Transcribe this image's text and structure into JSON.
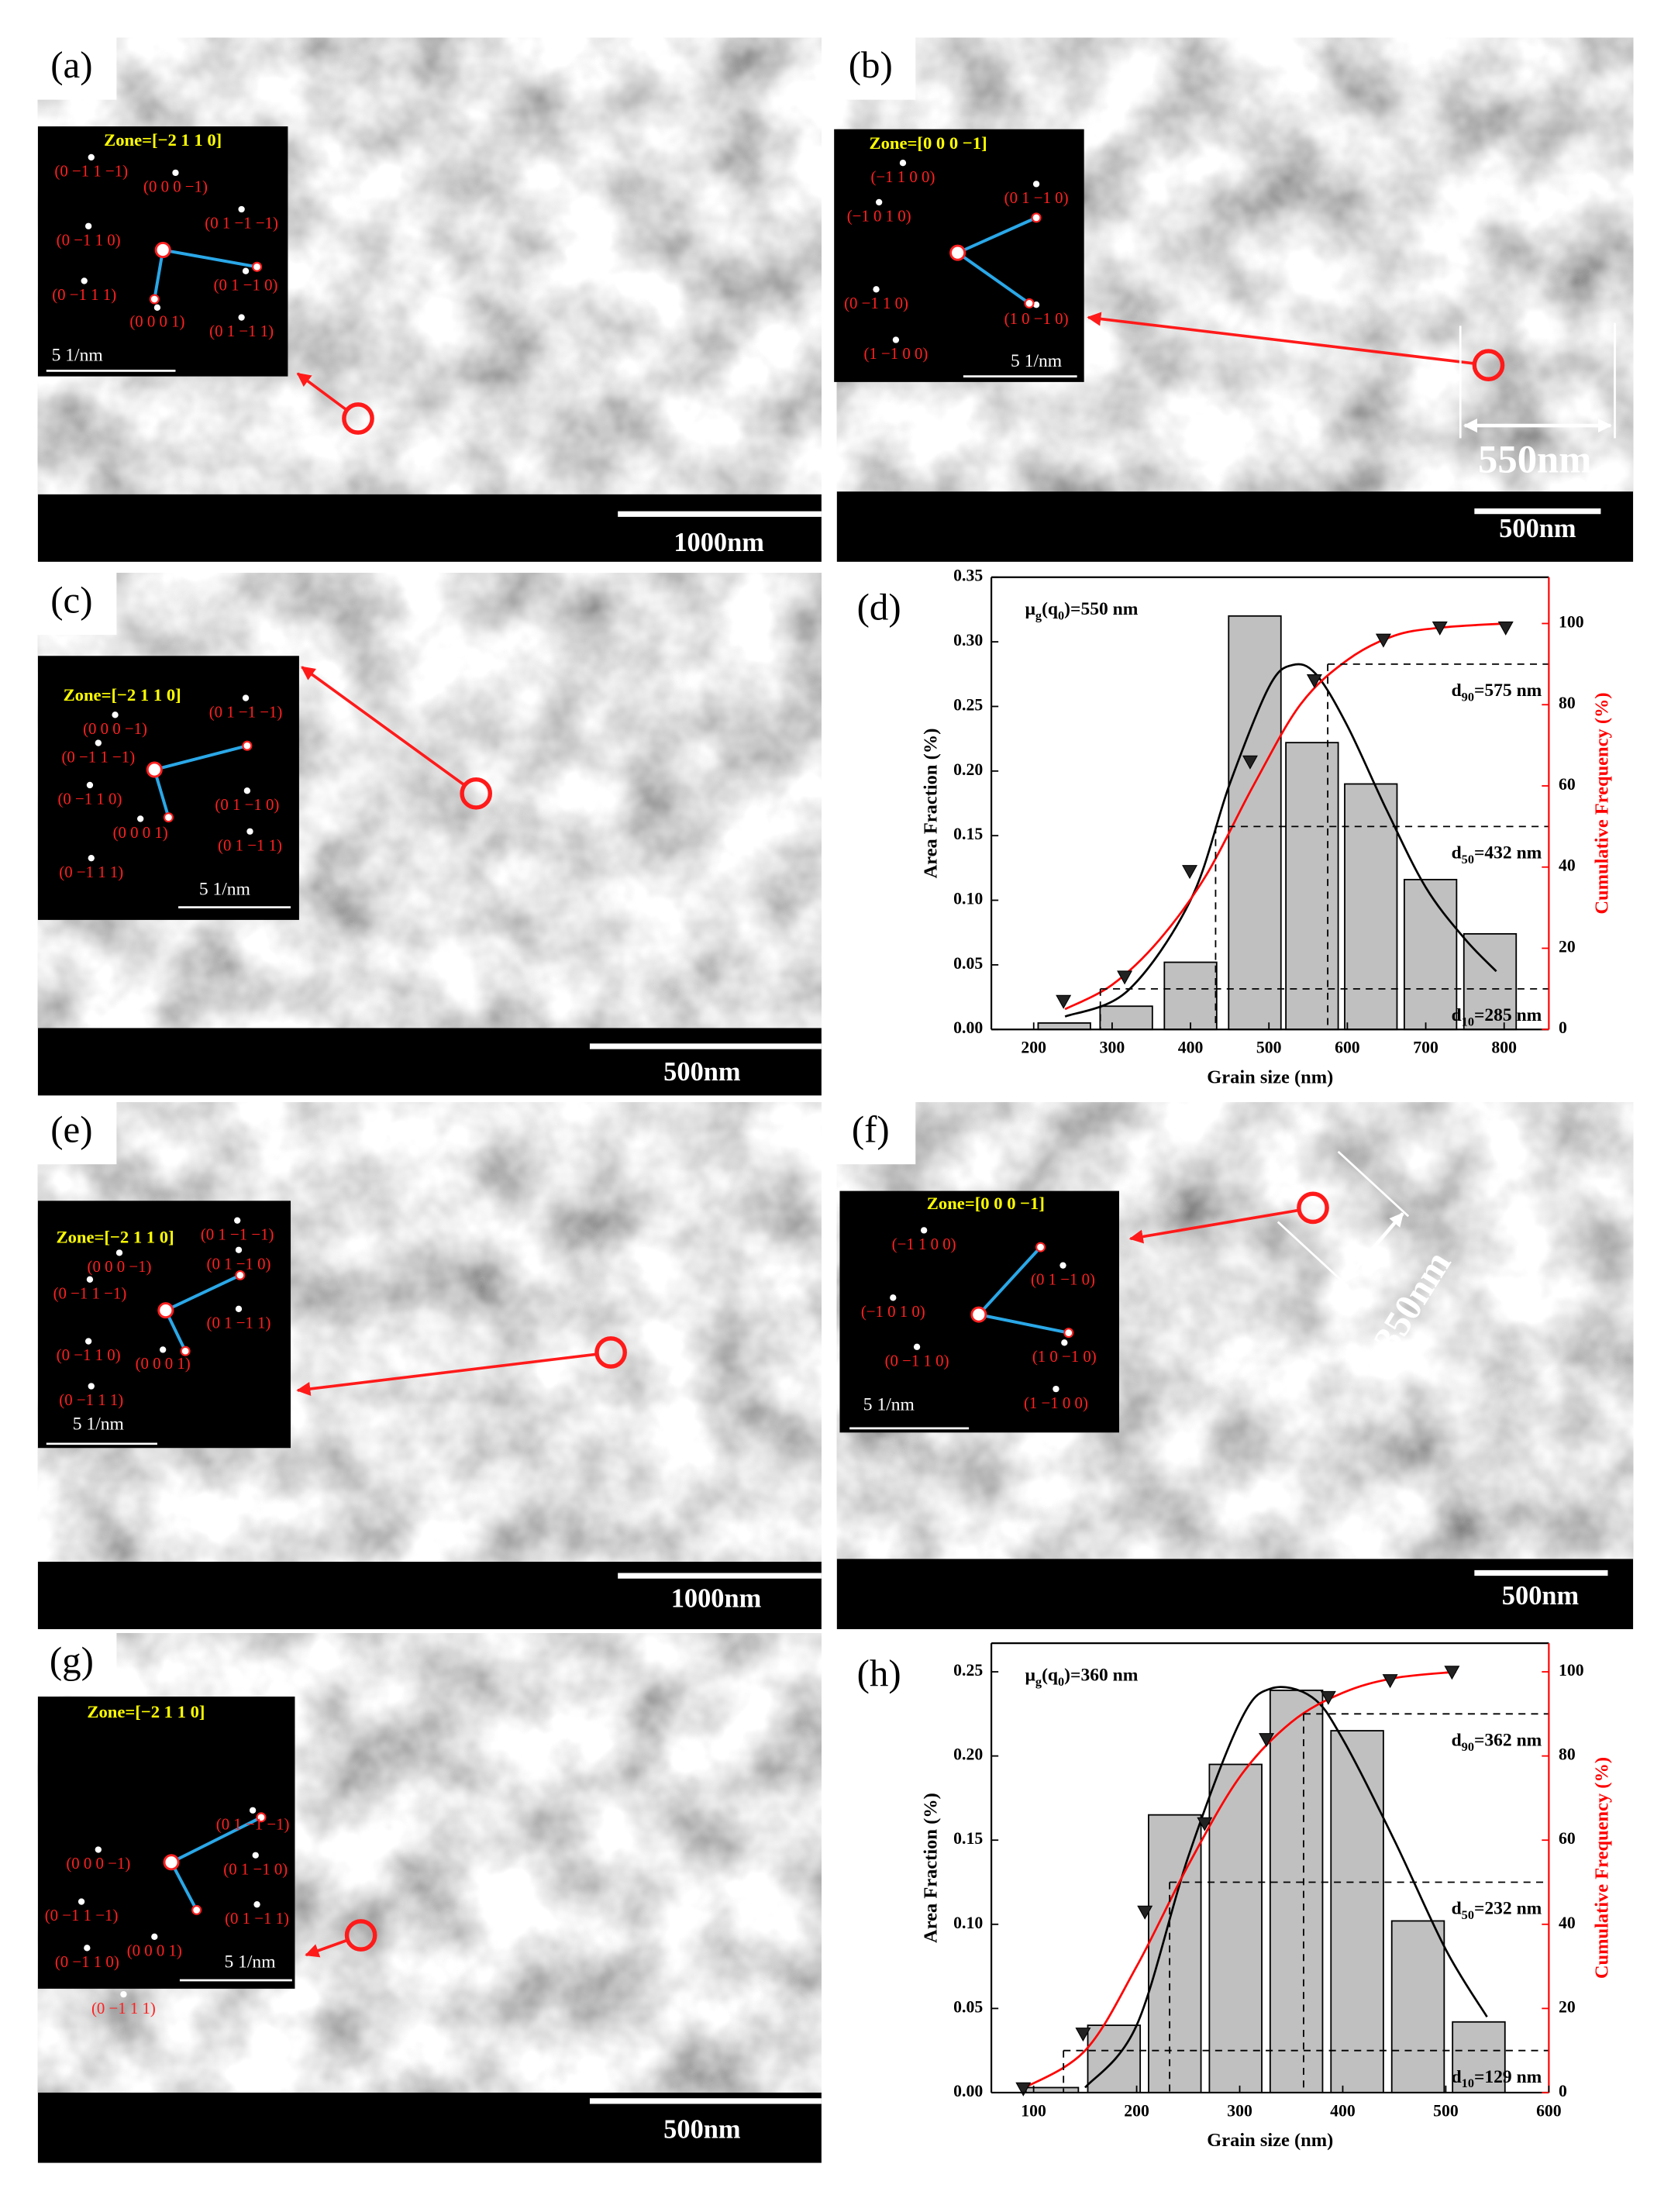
{
  "panels": [
    {
      "letter": "(a)",
      "zone": "Zone=[−2 1 1 0]",
      "inset_scale": "5 1/nm",
      "scale_bar": "1000nm",
      "spots": [
        "(0 −1 1 −1)",
        "(0 0 0 −1)",
        "(0 −1 1 0)",
        "(0 1 −1 −1)",
        "(0 −1 1 1)",
        "(0 1 −1 0)",
        "(0 0 0 1)",
        "(0 1 −1 1)"
      ]
    },
    {
      "letter": "(b)",
      "zone": "Zone=[0 0 0 −1]",
      "inset_scale": "5 1/nm",
      "scale_bar": "500nm",
      "measure": "550nm",
      "spots": [
        "(−1 1 0 0)",
        "(0 1 −1 0)",
        "(−1 0 1 0)",
        "(0 −1 1 0)",
        "(1 0 −1 0)",
        "(1 −1 0 0)"
      ]
    },
    {
      "letter": "(c)",
      "zone": "Zone=[−2 1 1 0]",
      "inset_scale": "5 1/nm",
      "scale_bar": "500nm",
      "spots": [
        "(0 1 −1 −1)",
        "(0 0 0 −1)",
        "(0 −1 1 −1)",
        "(0 1 −1 0)",
        "(0 −1 1 0)",
        "(0 1 −1 1)",
        "(0 0 0 1)",
        "(0 −1 1 1)"
      ]
    },
    {
      "letter": "(e)",
      "zone": "Zone=[−2 1 1 0]",
      "inset_scale": "5 1/nm",
      "scale_bar": "1000nm",
      "spots": [
        "(0 1 −1 −1)",
        "(0 0 0 −1)",
        "(0 1 −1 0)",
        "(0 −1 1 −1)",
        "(0 1 −1 1)",
        "(0 −1 1 0)",
        "(0 0 0 1)",
        "(0 −1 1 1)"
      ]
    },
    {
      "letter": "(f)",
      "zone": "Zone=[0 0 0 −1]",
      "inset_scale": "5 1/nm",
      "scale_bar": "500nm",
      "measure": "350nm",
      "spots": [
        "(−1 1 0 0)",
        "(0 1 −1 0)",
        "(−1 0 1 0)",
        "(0 −1 1 0)",
        "(1 0 −1 0)",
        "(1 −1 0 0)"
      ]
    },
    {
      "letter": "(g)",
      "zone": "Zone=[−2 1 1 0]",
      "inset_scale": "5 1/nm",
      "scale_bar": "500nm",
      "spots": [
        "(0 1 −1 −1)",
        "(0 0 0 −1)",
        "(0 1 −1 0)",
        "(0 −1 1 −1)",
        "(0 1 −1 1)",
        "(0 −1 1 0)",
        "(0 0 0 1)",
        "(0 −1 1 1)"
      ]
    }
  ],
  "chart_data": [
    {
      "type": "bar",
      "panel_label": "(d)",
      "x_label": "Grain size (nm)",
      "y_label": "Area Fraction (%)",
      "y2_label": "Cumulative Frequency (%)",
      "xlim": [
        146,
        857
      ],
      "xticks": [
        200,
        300,
        400,
        500,
        600,
        700,
        800
      ],
      "ylim": [
        0,
        0.35
      ],
      "yticks": [
        {
          "value": 0,
          "label": "0.00"
        },
        {
          "value": 0.05,
          "label": "0.05"
        },
        {
          "value": 0.1,
          "label": "0.10"
        },
        {
          "value": 0.15,
          "label": "0.15"
        },
        {
          "value": 0.2,
          "label": "0.20"
        },
        {
          "value": 0.25,
          "label": "0.25"
        },
        {
          "value": 0.3,
          "label": "0.30"
        },
        {
          "value": 0.35,
          "label": "0.35"
        }
      ],
      "y2lim": [
        0,
        111.4
      ],
      "y2ticks": [
        0,
        20,
        40,
        60,
        80,
        100
      ],
      "y2color": "#ff0000",
      "series": [
        {
          "type": "bar",
          "color": "#c0c0c0",
          "x": [
            239,
            318,
            400,
            482,
            555,
            630,
            706,
            782
          ],
          "values": [
            0.005,
            0.018,
            0.052,
            0.32,
            0.222,
            0.19,
            0.116,
            0.074
          ]
        },
        {
          "type": "line",
          "color": "#000000",
          "x": [
            240,
            320,
            400,
            450,
            500,
            530,
            560,
            600,
            650,
            700,
            750,
            790
          ],
          "values": [
            0.01,
            0.03,
            0.1,
            0.19,
            0.265,
            0.282,
            0.275,
            0.235,
            0.17,
            0.11,
            0.07,
            0.045
          ]
        },
        {
          "type": "line",
          "color": "#ff0000",
          "axis": "y2",
          "x": [
            240,
            300,
            360,
            420,
            480,
            540,
            600,
            660,
            720,
            800
          ],
          "values": [
            5,
            11,
            22,
            38,
            60,
            80,
            91,
            97,
            99,
            100
          ]
        },
        {
          "type": "scatter",
          "color": "#ff0000",
          "edge": "#000000",
          "axis": "y2",
          "x": [
            238,
            316,
            399,
            476,
            558,
            646,
            718,
            802
          ],
          "values": [
            7,
            13,
            39,
            66,
            86,
            96,
            99,
            99
          ]
        }
      ],
      "annotation": [
        "μ",
        "g",
        "(q",
        "0",
        ")=550 nm"
      ],
      "quantiles": [
        {
          "value": 575,
          "level": 90,
          "label": [
            "d",
            "90",
            "=575  nm"
          ]
        },
        {
          "value": 432,
          "level": 50,
          "label": [
            "d",
            "50",
            "=432  nm"
          ]
        },
        {
          "value": 285,
          "level": 10,
          "label": [
            "d",
            "10",
            "=285  nm"
          ]
        }
      ]
    },
    {
      "type": "bar",
      "panel_label": "(h)",
      "x_label": "Grain size (nm)",
      "y_label": "Area Fraction (%)",
      "y2_label": "Cumulative Frequency (%)",
      "xlim": [
        59,
        600
      ],
      "xticks": [
        100,
        200,
        300,
        400,
        500,
        600
      ],
      "ylim": [
        0,
        0.267
      ],
      "yticks": [
        {
          "value": 0,
          "label": "0.00"
        },
        {
          "value": 0.05,
          "label": "0.05"
        },
        {
          "value": 0.1,
          "label": "0.10"
        },
        {
          "value": 0.15,
          "label": "0.15"
        },
        {
          "value": 0.2,
          "label": "0.20"
        },
        {
          "value": 0.25,
          "label": "0.25"
        }
      ],
      "y2lim": [
        0,
        106.8
      ],
      "y2ticks": [
        0,
        20,
        40,
        60,
        80,
        100
      ],
      "y2color": "#ff0000",
      "series": [
        {
          "type": "bar",
          "color": "#c0c0c0",
          "x": [
            118,
            178,
            237,
            296,
            355,
            414,
            473,
            532
          ],
          "values": [
            0.003,
            0.04,
            0.165,
            0.195,
            0.239,
            0.215,
            0.102,
            0.042
          ]
        },
        {
          "type": "line",
          "color": "#000000",
          "x": [
            150,
            200,
            250,
            300,
            330,
            370,
            400,
            450,
            500,
            540
          ],
          "values": [
            0.003,
            0.04,
            0.14,
            0.22,
            0.24,
            0.235,
            0.21,
            0.15,
            0.085,
            0.045
          ]
        },
        {
          "type": "line",
          "color": "#ff0000",
          "axis": "y2",
          "x": [
            90,
            150,
            200,
            250,
            300,
            350,
            400,
            450,
            510
          ],
          "values": [
            1,
            10,
            30,
            54,
            75,
            88,
            95,
            98.5,
            100
          ]
        },
        {
          "type": "scatter",
          "color": "#ff0000",
          "edge": "#000000",
          "axis": "y2",
          "x": [
            90,
            148,
            208,
            266,
            326,
            386,
            446,
            506
          ],
          "values": [
            1,
            14,
            43,
            64,
            84,
            94,
            98,
            100
          ]
        }
      ],
      "annotation": [
        "μ",
        "g",
        "(q",
        "0",
        ")=360 nm"
      ],
      "quantiles": [
        {
          "value": 362,
          "level": 90,
          "label": [
            "d",
            "90",
            "=362  nm"
          ]
        },
        {
          "value": 232,
          "level": 50,
          "label": [
            "d",
            "50",
            "=232  nm"
          ]
        },
        {
          "value": 129,
          "level": 10,
          "label": [
            "d",
            "10",
            "=129  nm"
          ]
        }
      ]
    }
  ]
}
